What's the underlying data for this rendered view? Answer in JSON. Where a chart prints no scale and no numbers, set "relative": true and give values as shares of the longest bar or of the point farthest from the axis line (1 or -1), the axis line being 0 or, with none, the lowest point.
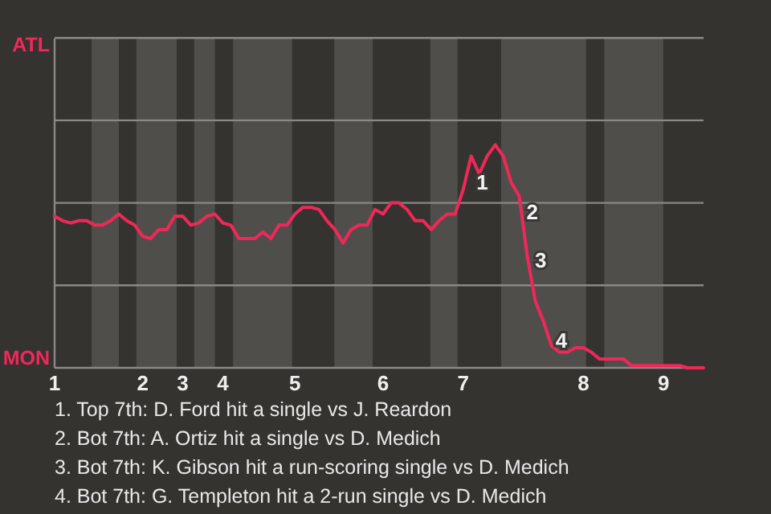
{
  "chart_data": {
    "type": "line",
    "categories": [
      "1",
      null,
      null,
      null,
      null,
      null,
      null,
      null,
      null,
      null,
      null,
      "2",
      null,
      null,
      null,
      null,
      "3",
      null,
      null,
      null,
      null,
      "4",
      null,
      null,
      null,
      null,
      null,
      null,
      null,
      null,
      "5",
      null,
      null,
      null,
      null,
      null,
      null,
      null,
      null,
      null,
      null,
      "6",
      null,
      null,
      null,
      null,
      null,
      null,
      null,
      null,
      null,
      "7",
      null,
      null,
      null,
      null,
      null,
      null,
      null,
      null,
      null,
      null,
      null,
      null,
      null,
      null,
      "8",
      null,
      null,
      null,
      null,
      null,
      null,
      null,
      null,
      null,
      "9",
      null,
      null,
      null,
      null,
      null
    ],
    "relative": true,
    "series": [
      {
        "color": "#f0285a",
        "values": [
          0.68,
          0.66,
          0.65,
          0.66,
          0.66,
          0.64,
          0.64,
          0.66,
          0.69,
          0.66,
          0.64,
          0.59,
          0.58,
          0.62,
          0.62,
          0.68,
          0.68,
          0.64,
          0.65,
          0.68,
          0.69,
          0.65,
          0.64,
          0.58,
          0.58,
          0.58,
          0.61,
          0.58,
          0.64,
          0.64,
          0.69,
          0.72,
          0.72,
          0.71,
          0.66,
          0.62,
          0.56,
          0.62,
          0.64,
          0.64,
          0.71,
          0.69,
          0.74,
          0.74,
          0.71,
          0.66,
          0.66,
          0.62,
          0.66,
          0.69,
          0.69,
          0.8,
          0.95,
          0.87,
          0.95,
          1,
          0.95,
          0.83,
          0.77,
          0.5,
          0.3,
          0.21,
          0.1,
          0.07,
          0.07,
          0.09,
          0.09,
          0.07,
          0.04,
          0.04,
          0.04,
          0.04,
          0.01,
          0.01,
          0.01,
          0.01,
          0.01,
          0.01,
          0.01,
          0,
          0,
          0
        ]
      }
    ],
    "ref_lines": [
      {
        "axis": "y",
        "value": 0.37,
        "color": "#8a8987"
      },
      {
        "axis": "y",
        "value": 0.74,
        "color": "#8a8987"
      },
      {
        "axis": "y",
        "value": 1.11,
        "color": "#8a8987"
      },
      {
        "axis": "y",
        "value": 1.48,
        "color": "#8a8987"
      }
    ],
    "annotations": [
      "1",
      "2",
      "3",
      "4",
      "ATL",
      "MON",
      "1. Top 7th: D. Ford hit a single vs J. Reardon",
      "2. Bot 7th: A. Ortiz hit a single vs D. Medich",
      "3. Bot 7th: K. Gibson hit a run-scoring single vs D. Medich",
      "4. Bot 7th: G. Templeton hit a 2-run single vs D. Medich"
    ]
  }
}
